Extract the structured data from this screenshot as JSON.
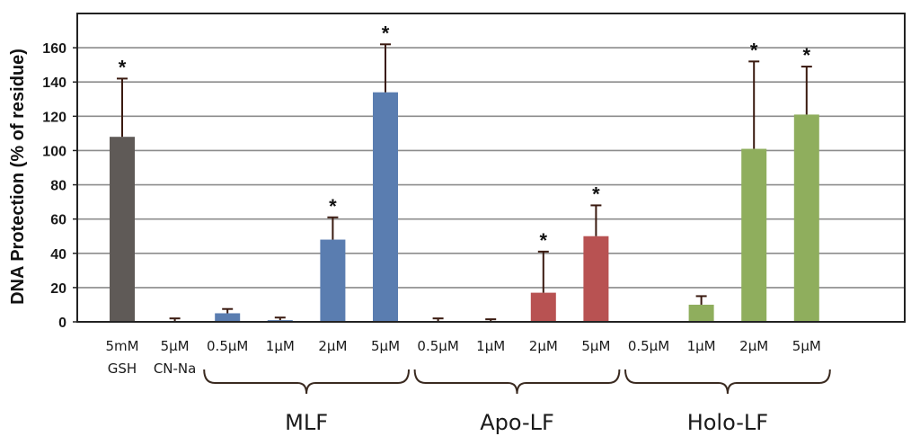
{
  "chart_data": {
    "type": "bar",
    "title": "",
    "xlabel": "",
    "ylabel": "DNA Protection (% of residue)",
    "ylim": [
      0,
      180
    ],
    "yticks": [
      0,
      20,
      40,
      60,
      80,
      100,
      120,
      140,
      160
    ],
    "grid": true,
    "categories": [
      {
        "line1": "5mM",
        "line2": "GSH",
        "value": 108,
        "error": 34,
        "significant": true,
        "color": "#5f5a57"
      },
      {
        "line1": "5μM",
        "line2": "CN-Na",
        "value": 0,
        "error": 2,
        "significant": false,
        "color": "#5f5a57"
      },
      {
        "line1": "0.5μM",
        "line2": "",
        "value": 5,
        "error": 2.5,
        "significant": false,
        "color": "#5a7db0"
      },
      {
        "line1": "1μM",
        "line2": "",
        "value": 1,
        "error": 1.5,
        "significant": false,
        "color": "#5a7db0"
      },
      {
        "line1": "2μM",
        "line2": "",
        "value": 48,
        "error": 13,
        "significant": true,
        "color": "#5a7db0"
      },
      {
        "line1": "5μM",
        "line2": "",
        "value": 134,
        "error": 28,
        "significant": true,
        "color": "#5a7db0"
      },
      {
        "line1": "0.5μM",
        "line2": "",
        "value": 0,
        "error": 2,
        "significant": false,
        "color": "#b85252"
      },
      {
        "line1": "1μM",
        "line2": "",
        "value": 0,
        "error": 1.5,
        "significant": false,
        "color": "#b85252"
      },
      {
        "line1": "2μM",
        "line2": "",
        "value": 17,
        "error": 24,
        "significant": true,
        "color": "#b85252"
      },
      {
        "line1": "5μM",
        "line2": "",
        "value": 50,
        "error": 18,
        "significant": true,
        "color": "#b85252"
      },
      {
        "line1": "0.5μM",
        "line2": "",
        "value": 0,
        "error": 0,
        "significant": false,
        "color": "#8fae5d"
      },
      {
        "line1": "1μM",
        "line2": "",
        "value": 10,
        "error": 5,
        "significant": false,
        "color": "#8fae5d"
      },
      {
        "line1": "2μM",
        "line2": "",
        "value": 101,
        "error": 51,
        "significant": true,
        "color": "#8fae5d"
      },
      {
        "line1": "5μM",
        "line2": "",
        "value": 121,
        "error": 28,
        "significant": true,
        "color": "#8fae5d"
      }
    ],
    "groups": [
      {
        "label": "MLF",
        "start": 2,
        "end": 5
      },
      {
        "label": "Apo-LF",
        "start": 6,
        "end": 9
      },
      {
        "label": "Holo-LF",
        "start": 10,
        "end": 13
      }
    ],
    "significance_marker": "*"
  }
}
